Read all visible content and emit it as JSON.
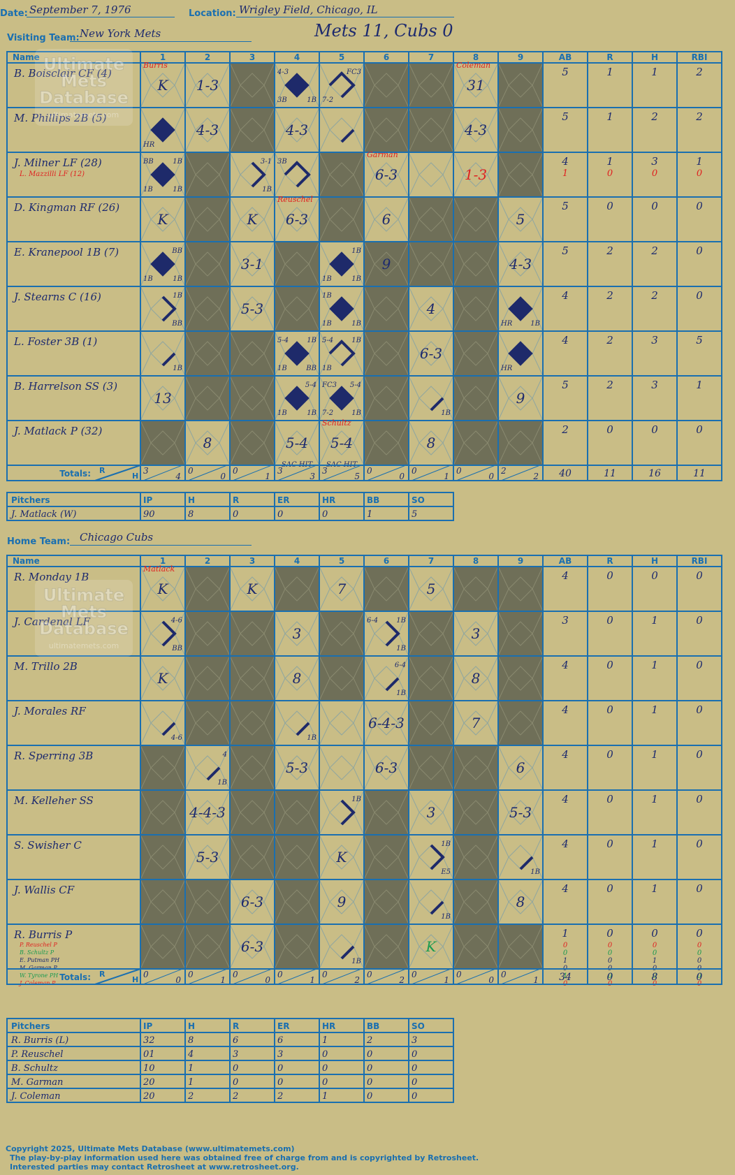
{
  "header": {
    "date_label": "Date:",
    "date": "September 7, 1976",
    "location_label": "Location:",
    "location": "Wrigley Field, Chicago, IL",
    "visiting_label": "Visiting Team:",
    "visiting_team": "New York Mets",
    "result": "Mets 11, Cubs 0",
    "home_label": "Home Team:",
    "home_team": "Chicago Cubs"
  },
  "columns": {
    "name": "Name",
    "innings": [
      "1",
      "2",
      "3",
      "4",
      "5",
      "6",
      "7",
      "8",
      "9"
    ],
    "stats": [
      "AB",
      "R",
      "H",
      "RBI"
    ],
    "totals": "Totals:",
    "r_label": "R",
    "h_label": "H"
  },
  "pitcher_columns": [
    "Pitchers",
    "IP",
    "H",
    "R",
    "ER",
    "HR",
    "BB",
    "SO"
  ],
  "watermark": [
    "Ultimate",
    "Mets",
    "Database",
    "ultimatemets.com"
  ],
  "visitors": {
    "players": [
      {
        "name": "B. Boisclair CF (4)",
        "stats": [
          "5",
          "1",
          "1",
          "2"
        ]
      },
      {
        "name": "M. Phillips 2B (5)",
        "stats": [
          "5",
          "1",
          "2",
          "2"
        ]
      },
      {
        "name": "J. Milner LF (28)",
        "sub": "L. Mazzilli LF (12)",
        "stats": [
          "4",
          "1",
          "3",
          "1"
        ],
        "sub_stats": [
          "1",
          "0",
          "0",
          "0"
        ]
      },
      {
        "name": "D. Kingman RF (26)",
        "stats": [
          "5",
          "0",
          "0",
          "0"
        ]
      },
      {
        "name": "E. Kranepool 1B (7)",
        "stats": [
          "5",
          "2",
          "2",
          "0"
        ]
      },
      {
        "name": "J. Stearns C (16)",
        "stats": [
          "4",
          "2",
          "2",
          "0"
        ]
      },
      {
        "name": "L. Foster 3B (1)",
        "stats": [
          "4",
          "2",
          "3",
          "5"
        ]
      },
      {
        "name": "B. Harrelson SS (3)",
        "stats": [
          "5",
          "2",
          "3",
          "1"
        ]
      },
      {
        "name": "J. Matlack P (32)",
        "stats": [
          "2",
          "0",
          "0",
          "0"
        ]
      }
    ],
    "totals_rh": [
      [
        "3",
        "4"
      ],
      [
        "0",
        "0"
      ],
      [
        "0",
        "1"
      ],
      [
        "3",
        "3"
      ],
      [
        "3",
        "5"
      ],
      [
        "0",
        "0"
      ],
      [
        "0",
        "1"
      ],
      [
        "0",
        "0"
      ],
      [
        "2",
        "2"
      ]
    ],
    "totals_stats": [
      "40",
      "11",
      "16",
      "11"
    ],
    "pitchers": [
      {
        "name": "J. Matlack (W)",
        "stats": [
          "90",
          "8",
          "0",
          "0",
          "0",
          "1",
          "5"
        ]
      }
    ]
  },
  "home": {
    "players": [
      {
        "name": "R. Monday 1B",
        "stats": [
          "4",
          "0",
          "0",
          "0"
        ]
      },
      {
        "name": "J. Cardenal LF",
        "stats": [
          "3",
          "0",
          "1",
          "0"
        ]
      },
      {
        "name": "M. Trillo 2B",
        "stats": [
          "4",
          "0",
          "1",
          "0"
        ]
      },
      {
        "name": "J. Morales RF",
        "stats": [
          "4",
          "0",
          "1",
          "0"
        ]
      },
      {
        "name": "R. Sperring 3B",
        "stats": [
          "4",
          "0",
          "1",
          "0"
        ]
      },
      {
        "name": "M. Kelleher SS",
        "stats": [
          "4",
          "0",
          "1",
          "0"
        ]
      },
      {
        "name": "S. Swisher C",
        "stats": [
          "4",
          "0",
          "1",
          "0"
        ]
      },
      {
        "name": "J. Wallis CF",
        "stats": [
          "4",
          "0",
          "1",
          "0"
        ]
      },
      {
        "name": "R. Burris P",
        "stats": [
          "1",
          "0",
          "0",
          "0"
        ],
        "subs": [
          {
            "name": "P. Reuschel P",
            "stats": [
              "0",
              "0",
              "0",
              "0"
            ]
          },
          {
            "name": "B. Schultz P",
            "stats": [
              "0",
              "0",
              "0",
              "0"
            ]
          },
          {
            "name": "E. Putman PH",
            "stats": [
              "1",
              "0",
              "1",
              "0"
            ]
          },
          {
            "name": "M. Garman P",
            "stats": [
              "0",
              "0",
              "0",
              "0"
            ]
          },
          {
            "name": "W. Tyrone PH",
            "stats": [
              "1",
              "0",
              "0",
              "0"
            ]
          },
          {
            "name": "J. Coleman P",
            "stats": [
              "0",
              "0",
              "0",
              "0"
            ]
          }
        ]
      }
    ],
    "totals_rh": [
      [
        "0",
        "0"
      ],
      [
        "0",
        "1"
      ],
      [
        "0",
        "0"
      ],
      [
        "0",
        "1"
      ],
      [
        "0",
        "2"
      ],
      [
        "0",
        "2"
      ],
      [
        "0",
        "1"
      ],
      [
        "0",
        "0"
      ],
      [
        "0",
        "1"
      ]
    ],
    "totals_stats": [
      "34",
      "0",
      "8",
      "0"
    ],
    "pitchers": [
      {
        "name": "R. Burris (L)",
        "stats": [
          "32",
          "8",
          "6",
          "6",
          "1",
          "2",
          "3"
        ]
      },
      {
        "name": "P. Reuschel",
        "stats": [
          "01",
          "4",
          "3",
          "3",
          "0",
          "0",
          "0"
        ]
      },
      {
        "name": "B. Schultz",
        "stats": [
          "10",
          "1",
          "0",
          "0",
          "0",
          "0",
          "0"
        ]
      },
      {
        "name": "M. Garman",
        "stats": [
          "20",
          "1",
          "0",
          "0",
          "0",
          "0",
          "0"
        ]
      },
      {
        "name": "J. Coleman",
        "stats": [
          "20",
          "2",
          "2",
          "2",
          "1",
          "0",
          "0"
        ]
      }
    ]
  },
  "vis_cells": [
    {
      "r": 0,
      "c": 0,
      "txt": "K",
      "note": "Burris"
    },
    {
      "r": 0,
      "c": 1,
      "txt": "1-3"
    },
    {
      "r": 0,
      "c": 3,
      "run": true,
      "tl": "4-3",
      "bl": "3B",
      "br": "1B"
    },
    {
      "r": 0,
      "c": 4,
      "path": 3,
      "tr": "FC3",
      "bl": "7-2"
    },
    {
      "r": 0,
      "c": 7,
      "txt": "31",
      "note": "Coleman"
    },
    {
      "r": 1,
      "c": 0,
      "run": true,
      "bl": "HR"
    },
    {
      "r": 1,
      "c": 1,
      "txt": "4-3"
    },
    {
      "r": 1,
      "c": 3,
      "txt": "4-3"
    },
    {
      "r": 1,
      "c": 4,
      "path": 1
    },
    {
      "r": 1,
      "c": 7,
      "txt": "4-3"
    },
    {
      "r": 2,
      "c": 0,
      "run": true,
      "tl": "BB",
      "tr": "1B",
      "bl": "1B",
      "br": "1B"
    },
    {
      "r": 2,
      "c": 2,
      "path": 2,
      "tr": "3-1",
      "br": "1B"
    },
    {
      "r": 2,
      "c": 3,
      "path": 3,
      "tl": "3B"
    },
    {
      "r": 2,
      "c": 5,
      "txt": "6-3",
      "note": "Garman"
    },
    {
      "r": 2,
      "c": 7,
      "txt": "1-3",
      "red": true
    },
    {
      "r": 3,
      "c": 0,
      "txt": "K"
    },
    {
      "r": 3,
      "c": 2,
      "txt": "K"
    },
    {
      "r": 3,
      "c": 3,
      "txt": "6-3",
      "note": "Reuschel"
    },
    {
      "r": 3,
      "c": 5,
      "txt": "6"
    },
    {
      "r": 3,
      "c": 8,
      "txt": "5"
    },
    {
      "r": 4,
      "c": 0,
      "run": true,
      "tr": "BB",
      "bl": "1B",
      "br": "1B"
    },
    {
      "r": 4,
      "c": 2,
      "txt": "3-1"
    },
    {
      "r": 4,
      "c": 4,
      "run": true,
      "tr": "1B",
      "bl": "1B",
      "br": "1B"
    },
    {
      "r": 4,
      "c": 5,
      "txt": "9"
    },
    {
      "r": 4,
      "c": 8,
      "txt": "4-3"
    },
    {
      "r": 5,
      "c": 0,
      "path": 2,
      "tr": "1B",
      "br": "BB"
    },
    {
      "r": 5,
      "c": 2,
      "txt": "5-3"
    },
    {
      "r": 5,
      "c": 4,
      "run": true,
      "tl": "1B",
      "bl": "1B",
      "br": "1B"
    },
    {
      "r": 5,
      "c": 6,
      "txt": "4"
    },
    {
      "r": 5,
      "c": 8,
      "run": true,
      "bl": "HR",
      "br": "1B"
    },
    {
      "r": 6,
      "c": 0,
      "path": 1,
      "br": "1B"
    },
    {
      "r": 6,
      "c": 3,
      "run": true,
      "tl": "5-4",
      "tr": "1B",
      "bl": "1B",
      "br": "BB"
    },
    {
      "r": 6,
      "c": 4,
      "path": 3,
      "tl": "5-4",
      "tr": "1B",
      "bl": "1B"
    },
    {
      "r": 6,
      "c": 6,
      "txt": "6-3"
    },
    {
      "r": 6,
      "c": 8,
      "run": true,
      "bl": "HR"
    },
    {
      "r": 7,
      "c": 0,
      "txt": "13"
    },
    {
      "r": 7,
      "c": 3,
      "run": true,
      "tr": "5-4",
      "bl": "1B",
      "br": "1B"
    },
    {
      "r": 7,
      "c": 4,
      "run": true,
      "tl": "FC3",
      "tr": "5-4",
      "bl": "7-2",
      "br": "1B"
    },
    {
      "r": 7,
      "c": 6,
      "path": 1,
      "br": "1B"
    },
    {
      "r": 7,
      "c": 8,
      "txt": "9"
    },
    {
      "r": 8,
      "c": 1,
      "txt": "8"
    },
    {
      "r": 8,
      "c": 3,
      "txt": "5-4",
      "bottom": "SAC HIT"
    },
    {
      "r": 8,
      "c": 4,
      "txt": "5-4",
      "bottom": "SAC HIT",
      "note": "Schultz"
    },
    {
      "r": 8,
      "c": 6,
      "txt": "8"
    }
  ],
  "vis_dark": [
    [
      2,
      5,
      6,
      8
    ],
    [
      2,
      5,
      6,
      8
    ],
    [
      1,
      4,
      8
    ],
    [
      1,
      4,
      6,
      7
    ],
    [
      1,
      3,
      5,
      6,
      7
    ],
    [
      1,
      3,
      5,
      7
    ],
    [
      1,
      2,
      5,
      7
    ],
    [
      1,
      2,
      5,
      7
    ],
    [
      0,
      2,
      5,
      7,
      8
    ]
  ],
  "home_cells": [
    {
      "r": 0,
      "c": 0,
      "txt": "K",
      "note": "Matlack"
    },
    {
      "r": 0,
      "c": 2,
      "txt": "K"
    },
    {
      "r": 0,
      "c": 4,
      "txt": "7"
    },
    {
      "r": 0,
      "c": 6,
      "txt": "5"
    },
    {
      "r": 1,
      "c": 0,
      "path": 2,
      "tr": "4-6",
      "br": "BB"
    },
    {
      "r": 1,
      "c": 3,
      "txt": "3"
    },
    {
      "r": 1,
      "c": 5,
      "path": 2,
      "tl": "6-4",
      "tr": "1B",
      "br": "1B"
    },
    {
      "r": 1,
      "c": 7,
      "txt": "3"
    },
    {
      "r": 2,
      "c": 0,
      "txt": "K"
    },
    {
      "r": 2,
      "c": 3,
      "txt": "8"
    },
    {
      "r": 2,
      "c": 5,
      "path": 1,
      "tr": "6-4",
      "br": "1B"
    },
    {
      "r": 2,
      "c": 7,
      "txt": "8"
    },
    {
      "r": 3,
      "c": 0,
      "path": 1,
      "br": "4-6"
    },
    {
      "r": 3,
      "c": 3,
      "path": 1,
      "br": "1B"
    },
    {
      "r": 3,
      "c": 5,
      "txt": "6-4-3"
    },
    {
      "r": 3,
      "c": 7,
      "txt": "7"
    },
    {
      "r": 4,
      "c": 1,
      "path": 1,
      "tr": "4",
      "br": "1B"
    },
    {
      "r": 4,
      "c": 3,
      "txt": "5-3"
    },
    {
      "r": 4,
      "c": 5,
      "txt": "6-3"
    },
    {
      "r": 4,
      "c": 8,
      "txt": "6"
    },
    {
      "r": 5,
      "c": 1,
      "txt": "4-4-3"
    },
    {
      "r": 5,
      "c": 4,
      "path": 2,
      "tr": "1B"
    },
    {
      "r": 5,
      "c": 6,
      "txt": "3"
    },
    {
      "r": 5,
      "c": 8,
      "txt": "5-3"
    },
    {
      "r": 6,
      "c": 1,
      "txt": "5-3"
    },
    {
      "r": 6,
      "c": 4,
      "txt": "K"
    },
    {
      "r": 6,
      "c": 6,
      "path": 2,
      "tr": "1B",
      "br": "E5"
    },
    {
      "r": 6,
      "c": 8,
      "path": 1,
      "br": "1B"
    },
    {
      "r": 7,
      "c": 2,
      "txt": "6-3"
    },
    {
      "r": 7,
      "c": 4,
      "txt": "9"
    },
    {
      "r": 7,
      "c": 6,
      "path": 1,
      "br": "1B"
    },
    {
      "r": 7,
      "c": 8,
      "txt": "8"
    },
    {
      "r": 8,
      "c": 2,
      "txt": "6-3"
    },
    {
      "r": 8,
      "c": 4,
      "path": 1,
      "br": "1B"
    },
    {
      "r": 8,
      "c": 6,
      "txt": "K",
      "green": true
    }
  ],
  "home_dark": [
    [
      1,
      3,
      5,
      7,
      8
    ],
    [
      1,
      2,
      4,
      6,
      8
    ],
    [
      1,
      2,
      4,
      6,
      8
    ],
    [
      1,
      2,
      6,
      8
    ],
    [
      0,
      2,
      6,
      7
    ],
    [
      0,
      2,
      3,
      5,
      7
    ],
    [
      0,
      2,
      3,
      5,
      7
    ],
    [
      0,
      1,
      3,
      5,
      7
    ],
    [
      0,
      1,
      3,
      5,
      7,
      8
    ]
  ],
  "footer": [
    "Copyright 2025, Ultimate Mets Database (www.ultimatemets.com)",
    "The play-by-play information used here was obtained free of charge from and is copyrighted by Retrosheet.",
    "Interested parties may contact Retrosheet at www.retrosheet.org."
  ],
  "colors": {
    "bg": "#c9bd86",
    "grid": "#1a6fb0",
    "dark": "#6f6f58",
    "ink": "#1d2a6e",
    "run": "#1e2a6a",
    "red": "#e02020",
    "green": "#1a9a50"
  }
}
